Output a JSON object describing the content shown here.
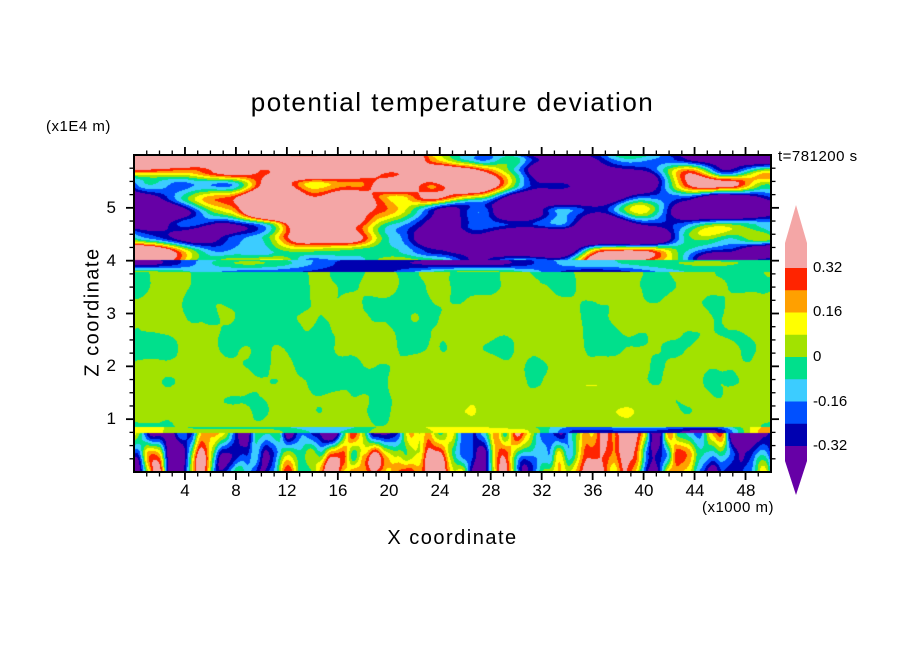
{
  "chart_data": {
    "type": "heatmap",
    "title": "potential temperature deviation",
    "xlabel": "X coordinate",
    "ylabel": "Z coordinate",
    "x_unit_label": "(x1000 m)",
    "z_unit_label": "(x1E4 m)",
    "time_annotation": "t=781200 s",
    "x_range": [
      0,
      50
    ],
    "z_range": [
      0,
      6
    ],
    "x_ticks": [
      4,
      8,
      12,
      16,
      20,
      24,
      28,
      32,
      36,
      40,
      44,
      48
    ],
    "x_minor_step": 1,
    "z_ticks": [
      1,
      2,
      3,
      4,
      5
    ],
    "z_minor_step": 0.25,
    "contour_levels": [
      -0.32,
      -0.24,
      -0.16,
      -0.08,
      0,
      0.08,
      0.16,
      0.24,
      0.32
    ],
    "colorbar_labels": [
      "0.32",
      "0.16",
      "0",
      "-0.16",
      "-0.32"
    ],
    "band_colors": [
      "#6600A6",
      "#0000B0",
      "#0050FF",
      "#3CCCFF",
      "#00E08C",
      "#A2E200",
      "#FFFF00",
      "#FFA000",
      "#FF2400",
      "#F4A6A6"
    ],
    "legend_position": "right",
    "field_summary": "x-z cross-section: near-zero deviations (greens) over most of the domain, a turbulent layer with strong +/-0.4 plumes below z=0.8x1E4 m, a thin negative stripe near z=3.9x1E4 m, and large-amplitude wave bands (pink above 0.32, purple below -0.32) above z=4x1E4 m",
    "field_layers": [
      {
        "name": "gravity-wave-region",
        "z_min": 4.02,
        "z_max": 6.01,
        "bias": 0.06,
        "bias_slope": 0,
        "amplitude": 0.75,
        "contrast": 1.6,
        "scale_x": 6.5,
        "scale_z": 0.5,
        "octaves": 2,
        "seed": 11
      },
      {
        "name": "tropopause-stripe",
        "z_min": 3.78,
        "z_max": 4.02,
        "bias": -0.16,
        "bias_slope": 0,
        "amplitude": 0.28,
        "contrast": 1,
        "scale_x": 9,
        "scale_z": 0.22,
        "octaves": 1,
        "seed": 23
      },
      {
        "name": "free-troposphere",
        "z_min": 0.86,
        "z_max": 3.78,
        "bias": 0.012,
        "bias_slope": 0.015,
        "amplitude": 0.058,
        "contrast": 1.25,
        "scale_x": 2.4,
        "scale_z": 0.6,
        "octaves": 2,
        "seed": 37
      },
      {
        "name": "inversion-stripe",
        "z_min": 0.74,
        "z_max": 0.86,
        "bias": -0.06,
        "bias_slope": 0,
        "amplitude": 0.32,
        "contrast": 1,
        "scale_x": 5,
        "scale_z": 0.25,
        "octaves": 1,
        "seed": 47
      },
      {
        "name": "convective-boundary-layer",
        "z_min": 0,
        "z_max": 0.74,
        "bias": -0.01,
        "bias_slope": 0,
        "amplitude": 0.5,
        "contrast": 1.4,
        "scale_x": 1.7,
        "scale_z": 0.9,
        "octaves": 2,
        "seed": 53
      }
    ]
  }
}
